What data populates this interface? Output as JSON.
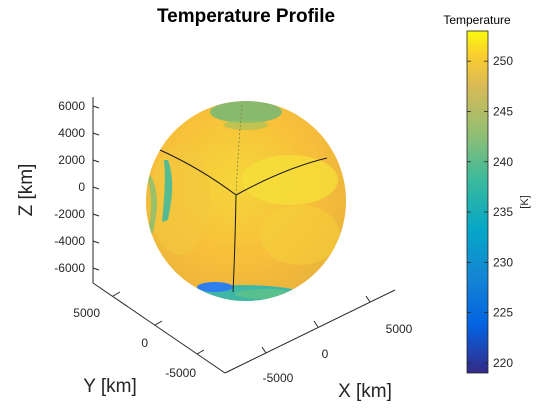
{
  "colors": {
    "axis": "#262626",
    "background": "#ffffff",
    "sphere_base": "#f6b43a",
    "sphere_warm": "#f5d637",
    "sphere_cool": "#3fb6a8",
    "sphere_cold": "#2e7df0",
    "seam": "#1a1a1a"
  },
  "chart_data": {
    "type": "surface-sphere",
    "title": "Temperature Profile",
    "xlabel": "X [km]",
    "ylabel": "Y [km]",
    "zlabel": "Z [km]",
    "x_ticks": [
      "-5000",
      "0",
      "5000"
    ],
    "y_ticks": [
      "5000",
      "0",
      "-5000"
    ],
    "z_ticks": [
      "6000",
      "4000",
      "2000",
      "0",
      "-2000",
      "-4000",
      "-6000"
    ],
    "xlim": [
      -7000,
      7000
    ],
    "ylim": [
      -7000,
      7000
    ],
    "zlim": [
      -7000,
      7000
    ],
    "sphere_radius_km": 6370,
    "colormap": "parula",
    "colorbar": {
      "title": "Temperature",
      "unit": "[K]",
      "ticks": [
        "250",
        "245",
        "240",
        "235",
        "230",
        "225",
        "220"
      ],
      "range": [
        219,
        253
      ]
    },
    "grid": false,
    "legend": "none"
  }
}
